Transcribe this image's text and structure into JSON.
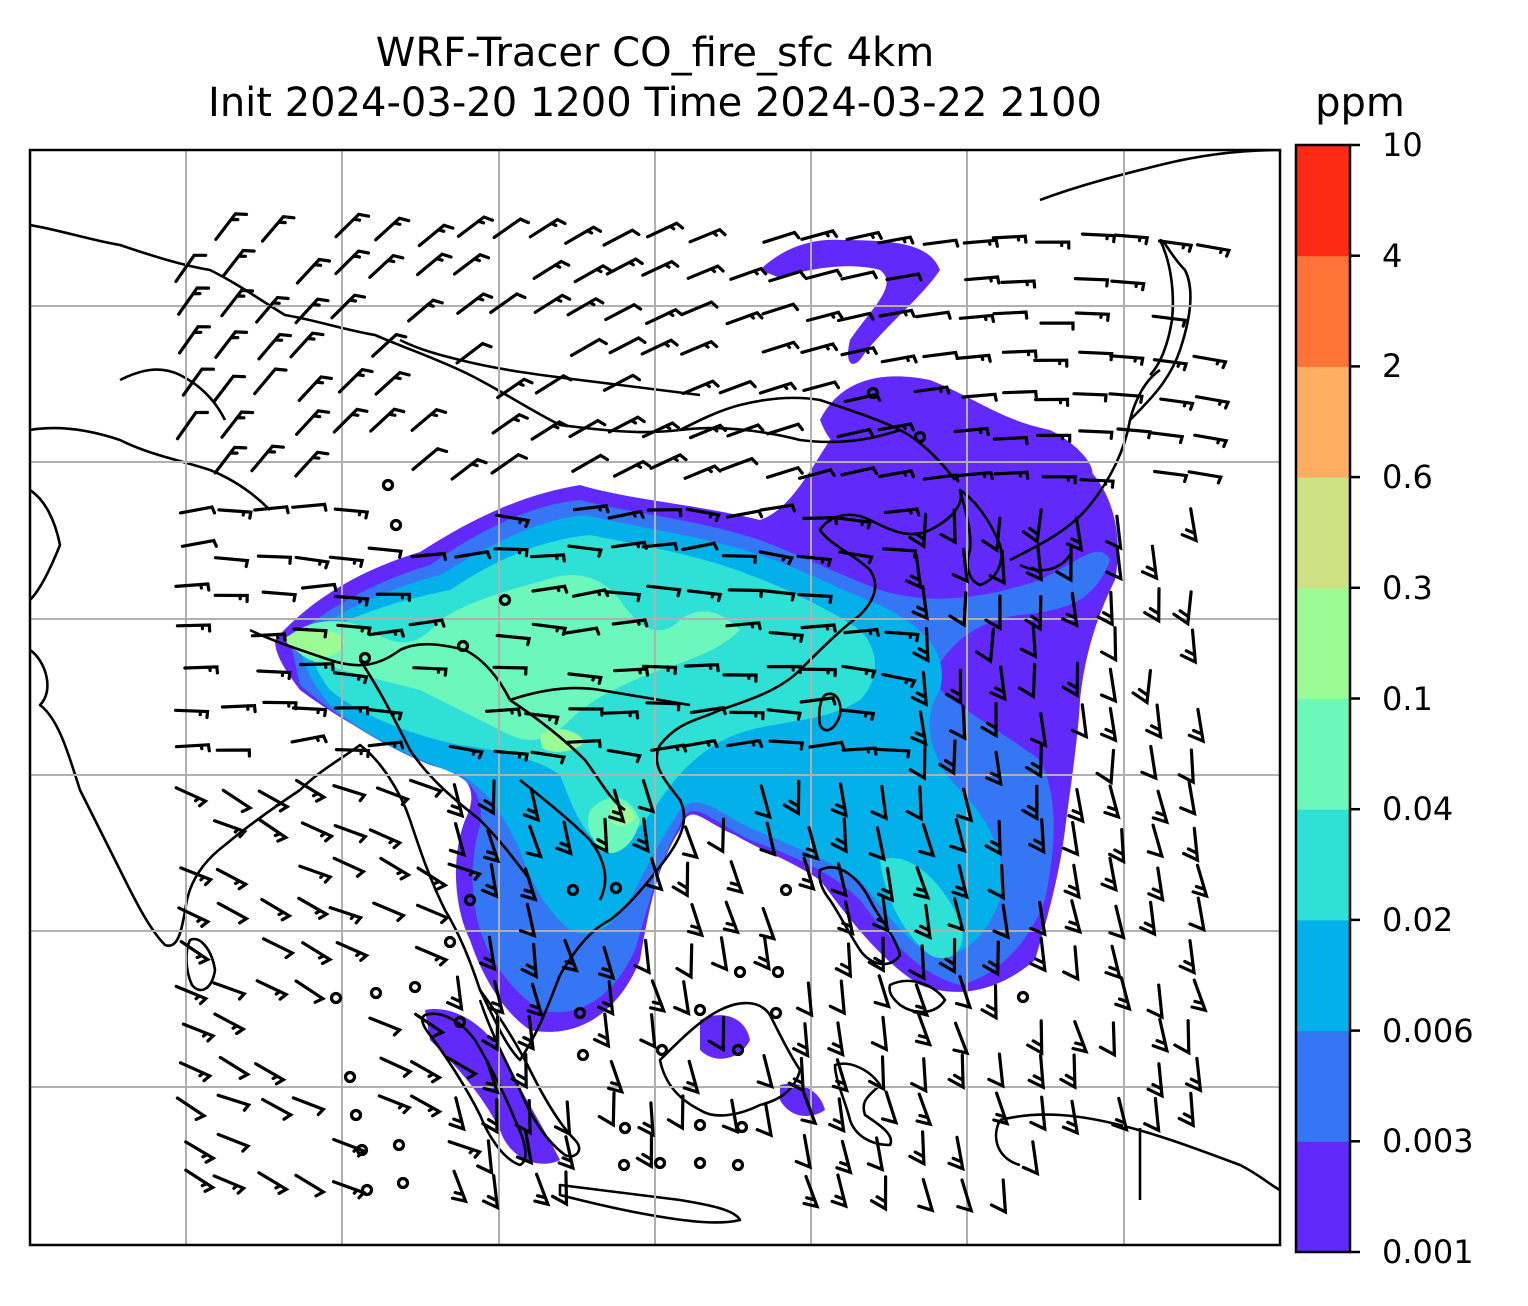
{
  "title": {
    "line1": "WRF-Tracer CO_fire_sfc 4km",
    "line2": "Init 2024-03-20 1200 Time 2024-03-22 2100"
  },
  "colorbar": {
    "unit": "ppm",
    "levels": [
      "0.001",
      "0.003",
      "0.006",
      "0.02",
      "0.04",
      "0.1",
      "0.3",
      "0.6",
      "2",
      "4",
      "10"
    ],
    "colors": [
      "#6229fb",
      "#3476f3",
      "#04b0ea",
      "#2ee0d6",
      "#6cf8bc",
      "#9cfb95",
      "#cfe182",
      "#ffad61",
      "#ff7339",
      "#ff2a14"
    ]
  },
  "map": {
    "field": "CO_fire_sfc",
    "overlays": [
      "coastlines",
      "country-borders",
      "gridlines",
      "wind-barbs"
    ]
  }
}
